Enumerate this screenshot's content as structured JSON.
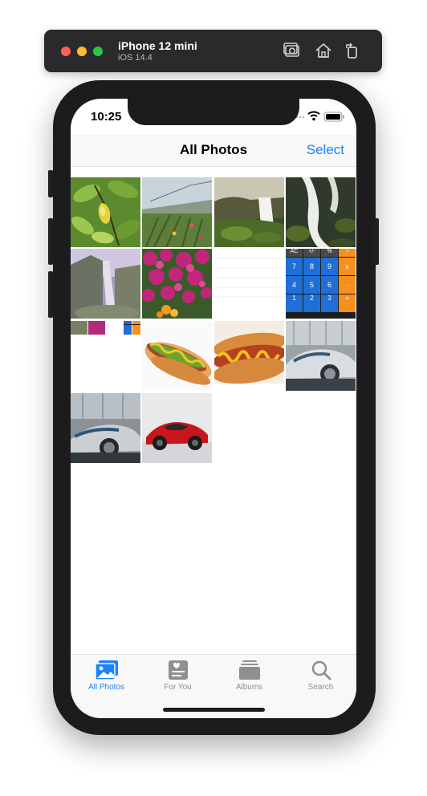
{
  "simulator": {
    "device_name": "iPhone 12 mini",
    "os_version": "iOS 14.4",
    "buttons": [
      "screenshot-icon",
      "home-icon",
      "rotate-icon"
    ]
  },
  "status_bar": {
    "time": "10:25"
  },
  "nav": {
    "title": "All Photos",
    "select_label": "Select"
  },
  "photos": [
    "lemon-tree",
    "coastal-meadow",
    "waterfall-cliff",
    "rocky-waterfall",
    "misty-waterfall",
    "pink-flowers",
    "blank-screenshot",
    "calculator-screenshot",
    "photos-app-screenshot",
    "hotdog-plate",
    "hotdog-mustard",
    "silver-concept-car",
    "concept-car-garage",
    "red-sports-car"
  ],
  "calculator": {
    "keys": [
      "AC",
      "+/-",
      "%",
      "÷",
      "7",
      "8",
      "9",
      "x",
      "4",
      "5",
      "6",
      "-",
      "1",
      "2",
      "3",
      "+"
    ]
  },
  "tabs": [
    {
      "label": "All Photos",
      "icon": "photos-icon"
    },
    {
      "label": "For You",
      "icon": "for-you-icon"
    },
    {
      "label": "Albums",
      "icon": "albums-icon"
    },
    {
      "label": "Search",
      "icon": "search-icon"
    }
  ],
  "colors": {
    "accent": "#1a82fb",
    "inactive": "#8e8e93"
  }
}
